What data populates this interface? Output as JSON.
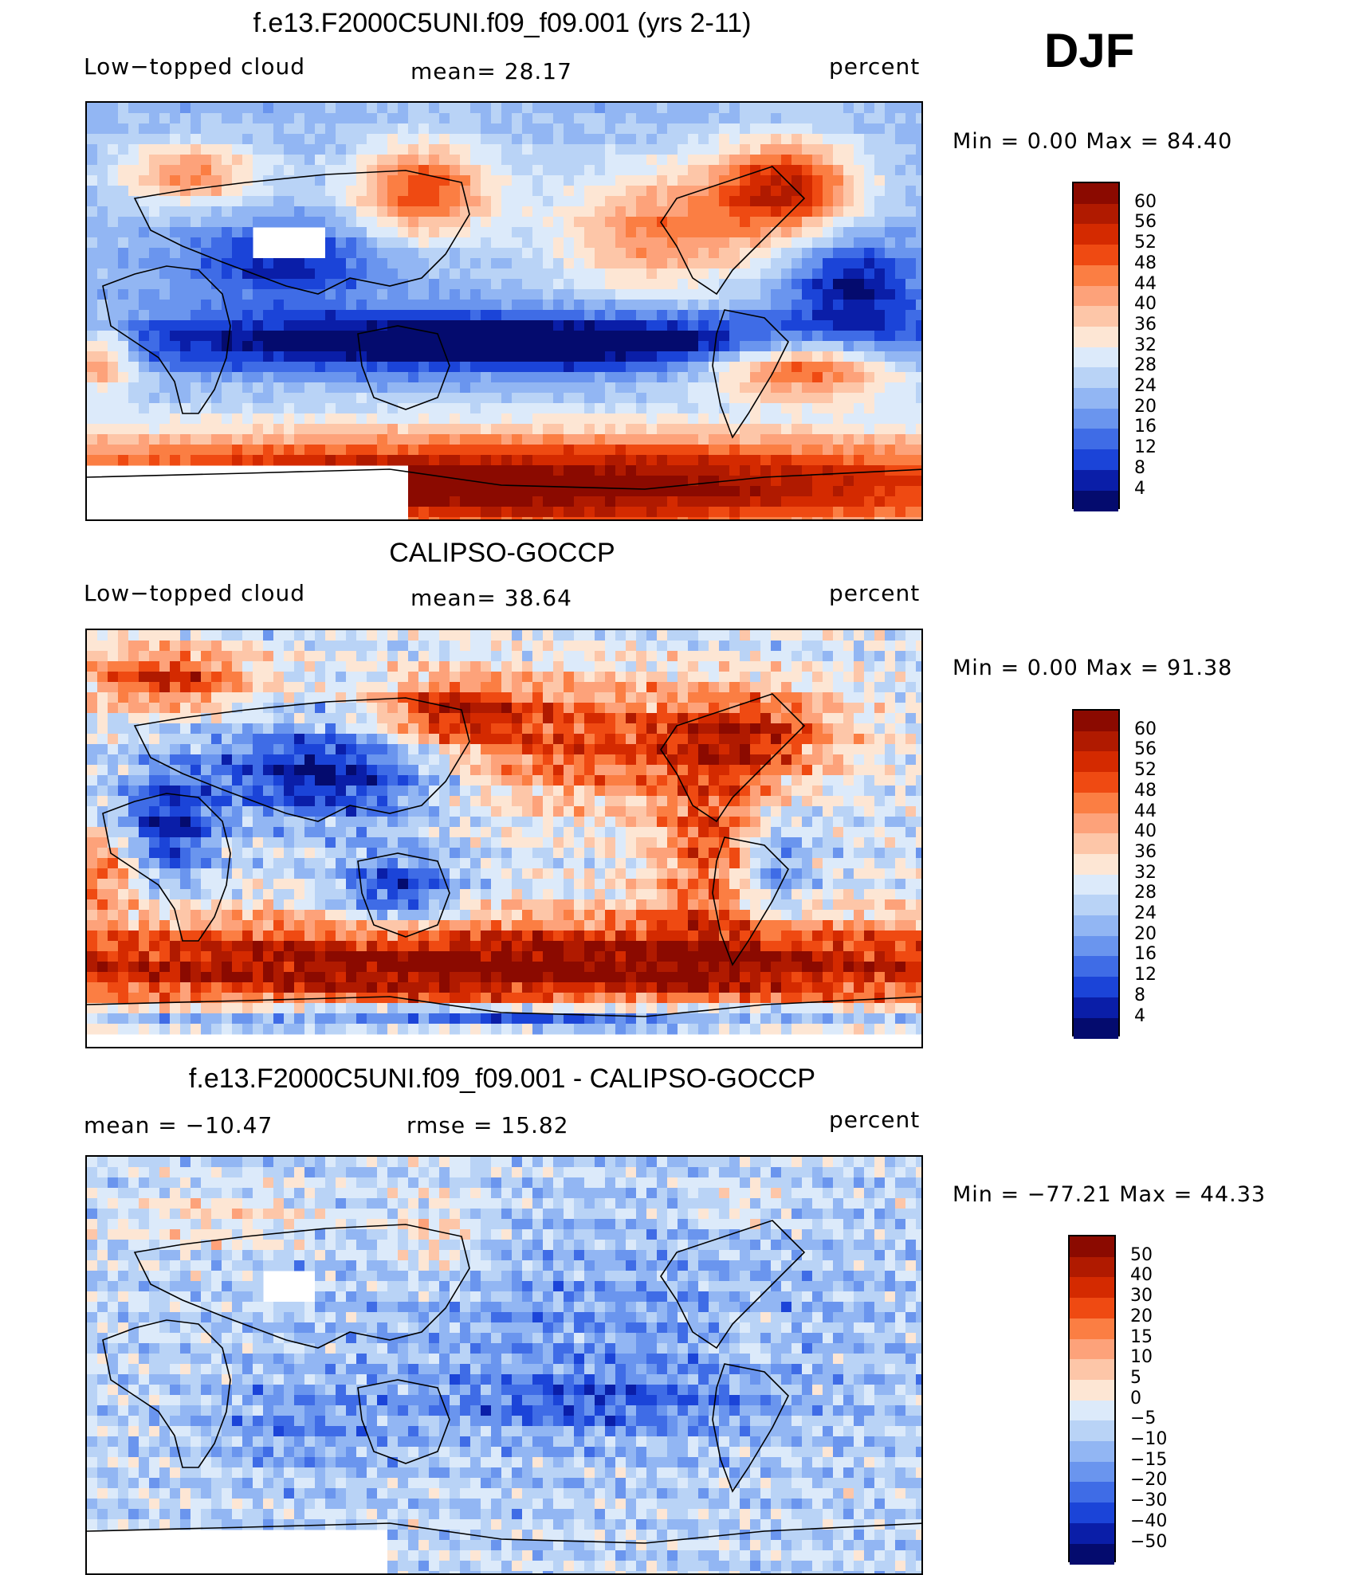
{
  "season": "DJF",
  "panels": [
    {
      "id": "model",
      "title": "f.e13.F2000C5UNI.f09_f09.001 (yrs 2-11)",
      "variable": "Low−topped cloud",
      "stat_left": "",
      "stat_center": "mean=   28.17",
      "units": "percent",
      "min_max": "Min =     0.00 Max =    84.40",
      "colorbar": {
        "labels": [
          "60",
          "56",
          "52",
          "48",
          "44",
          "40",
          "36",
          "32",
          "28",
          "24",
          "20",
          "16",
          "12",
          "8",
          "4"
        ],
        "colors": [
          "#8b0a00",
          "#b01a00",
          "#d42a00",
          "#ef4a12",
          "#fb7e43",
          "#fda27a",
          "#fdc6a8",
          "#fde6d4",
          "#dceafa",
          "#b9d3f6",
          "#92b6f3",
          "#6a95ee",
          "#3f6ce6",
          "#1b44d8",
          "#0a1ea8",
          "#040b6e"
        ]
      }
    },
    {
      "id": "obs",
      "title": "CALIPSO-GOCCP",
      "variable": "Low−topped cloud",
      "stat_left": "",
      "stat_center": "mean=   38.64",
      "units": "percent",
      "min_max": "Min =     0.00 Max =    91.38",
      "colorbar": {
        "labels": [
          "60",
          "56",
          "52",
          "48",
          "44",
          "40",
          "36",
          "32",
          "28",
          "24",
          "20",
          "16",
          "12",
          "8",
          "4"
        ],
        "colors": [
          "#8b0a00",
          "#b01a00",
          "#d42a00",
          "#ef4a12",
          "#fb7e43",
          "#fda27a",
          "#fdc6a8",
          "#fde6d4",
          "#dceafa",
          "#b9d3f6",
          "#92b6f3",
          "#6a95ee",
          "#3f6ce6",
          "#1b44d8",
          "#0a1ea8",
          "#040b6e"
        ]
      }
    },
    {
      "id": "diff",
      "title": "f.e13.F2000C5UNI.f09_f09.001 - CALIPSO-GOCCP",
      "variable": "",
      "stat_left": "mean = −10.47",
      "stat_center": "rmse =    15.82",
      "units": "percent",
      "min_max": "Min = −77.21 Max =    44.33",
      "colorbar": {
        "labels": [
          "50",
          "40",
          "30",
          "20",
          "15",
          "10",
          "5",
          "0",
          "−5",
          "−10",
          "−15",
          "−20",
          "−30",
          "−40",
          "−50"
        ],
        "colors": [
          "#8b0a00",
          "#b01a00",
          "#d42a00",
          "#ef4a12",
          "#fb7e43",
          "#fda27a",
          "#fdc6a8",
          "#fde6d4",
          "#dceafa",
          "#b9d3f6",
          "#92b6f3",
          "#6a95ee",
          "#3f6ce6",
          "#1b44d8",
          "#0a1ea8",
          "#040b6e"
        ]
      }
    }
  ]
}
